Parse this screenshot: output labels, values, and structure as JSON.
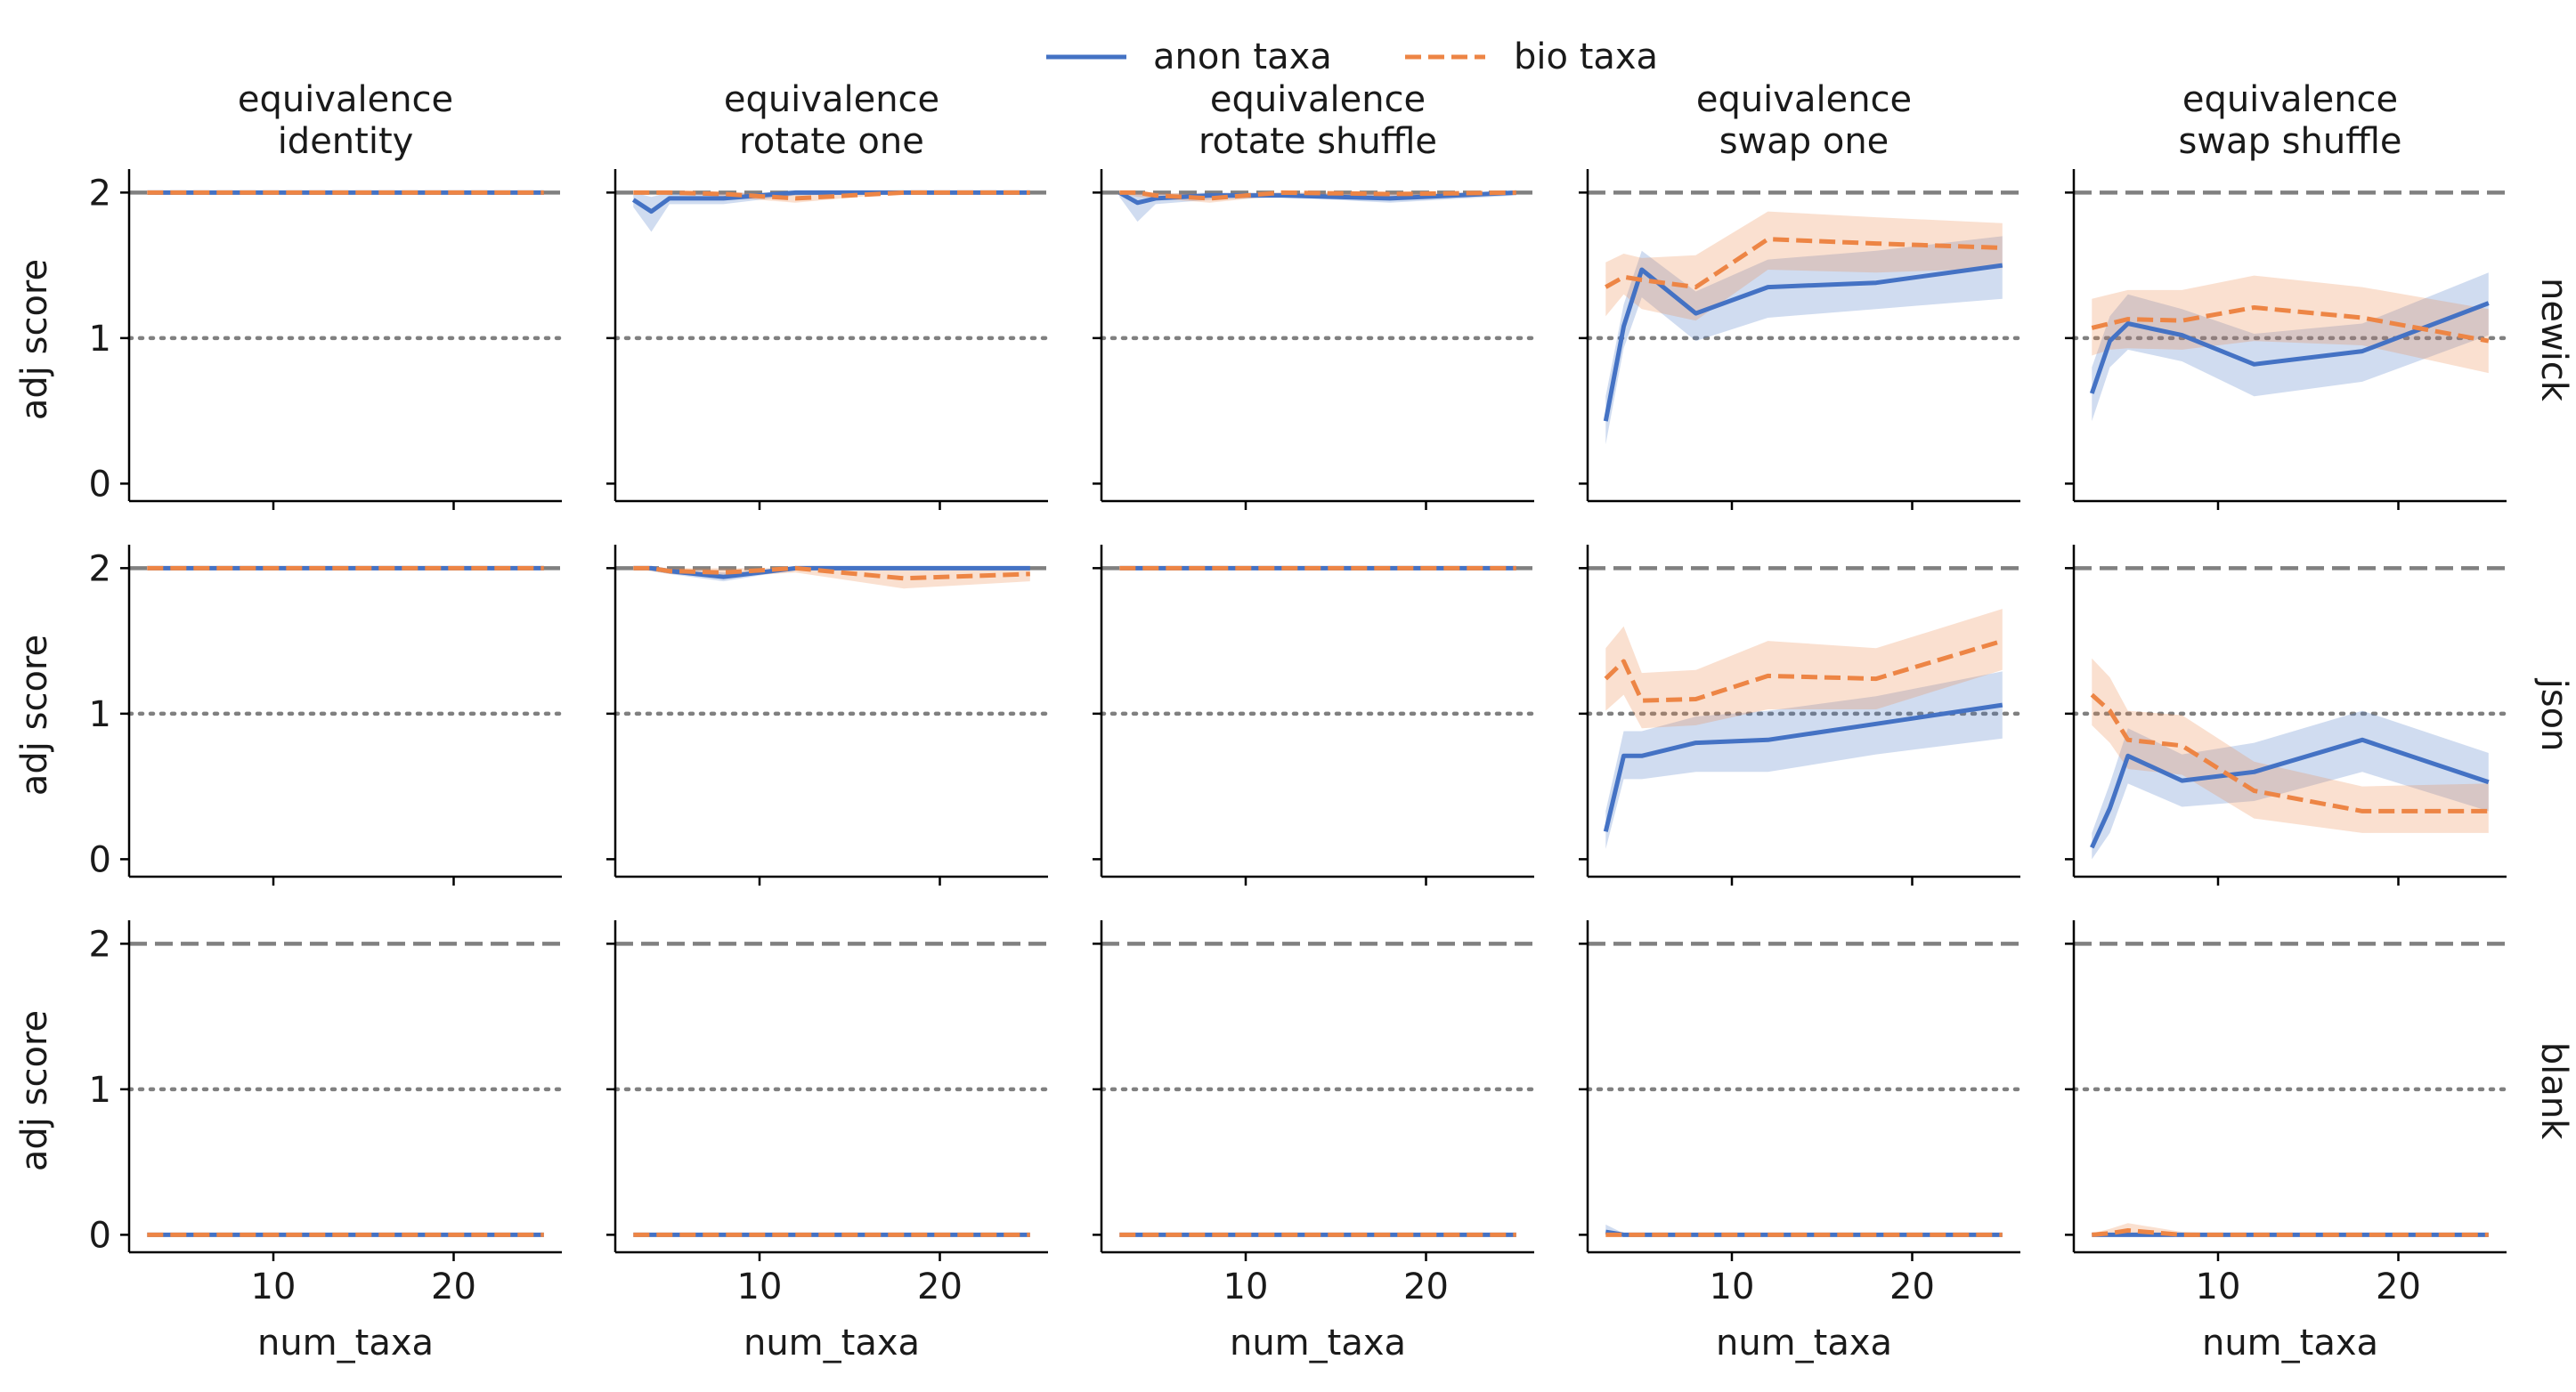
{
  "figure": {
    "legend_placement": "top-center",
    "legend": [
      {
        "label": "anon taxa",
        "color": "#4472c4",
        "dash": "solid"
      },
      {
        "label": "bio taxa",
        "color": "#ed8545",
        "dash": "dashed"
      }
    ],
    "column_titles": [
      [
        "equivalence",
        "identity"
      ],
      [
        "equivalence",
        "rotate one"
      ],
      [
        "equivalence",
        "rotate shuffle"
      ],
      [
        "equivalence",
        "swap one"
      ],
      [
        "equivalence",
        "swap shuffle"
      ]
    ],
    "row_labels": [
      "newick",
      "json",
      "blank"
    ],
    "xlabel": "num_taxa",
    "ylabel": "adj score",
    "xlim": [
      2,
      26
    ],
    "ylim": [
      -0.12,
      2.1
    ],
    "xticks": [
      10,
      20
    ],
    "yticks": [
      0,
      1,
      2
    ],
    "reference_lines": [
      {
        "y": 2,
        "style": "dashed",
        "color": "#808080"
      },
      {
        "y": 1,
        "style": "dotted",
        "color": "#808080"
      }
    ]
  },
  "chart_data": {
    "type": "line",
    "grid": false,
    "series_names": [
      "anon taxa",
      "bio taxa"
    ],
    "panels": [
      {
        "row": "newick",
        "column": "identity",
        "anon": {
          "x": [
            3,
            25
          ],
          "y": [
            2.0,
            2.0
          ]
        },
        "bio": {
          "x": [
            3,
            25
          ],
          "y": [
            2.0,
            2.0
          ]
        }
      },
      {
        "row": "newick",
        "column": "rotate one",
        "anon": {
          "x": [
            3,
            4,
            5,
            8,
            12,
            18,
            25
          ],
          "y": [
            1.95,
            1.87,
            1.96,
            1.96,
            2.0,
            2.0,
            2.0
          ],
          "lo": [
            1.9,
            1.73,
            1.92,
            1.92,
            1.98,
            2.0,
            2.0
          ],
          "hi": [
            2.0,
            1.97,
            2.0,
            2.0,
            2.0,
            2.0,
            2.0
          ]
        },
        "bio": {
          "x": [
            3,
            4,
            5,
            8,
            12,
            18,
            25
          ],
          "y": [
            2.0,
            2.0,
            2.0,
            1.99,
            1.96,
            2.0,
            2.0
          ],
          "lo": [
            2.0,
            2.0,
            2.0,
            1.97,
            1.93,
            2.0,
            2.0
          ],
          "hi": [
            2.0,
            2.0,
            2.0,
            2.0,
            1.99,
            2.0,
            2.0
          ]
        }
      },
      {
        "row": "newick",
        "column": "rotate shuffle",
        "anon": {
          "x": [
            3,
            4,
            5,
            8,
            12,
            18,
            25
          ],
          "y": [
            2.0,
            1.93,
            1.96,
            1.98,
            1.98,
            1.96,
            2.0
          ],
          "lo": [
            1.97,
            1.8,
            1.92,
            1.95,
            1.97,
            1.93,
            1.98
          ],
          "hi": [
            2.0,
            2.0,
            1.99,
            2.0,
            2.0,
            1.99,
            2.0
          ]
        },
        "bio": {
          "x": [
            3,
            4,
            5,
            8,
            12,
            18,
            25
          ],
          "y": [
            2.0,
            2.0,
            1.98,
            1.96,
            2.0,
            1.99,
            2.0
          ],
          "lo": [
            2.0,
            1.97,
            1.96,
            1.93,
            1.98,
            1.97,
            2.0
          ],
          "hi": [
            2.0,
            2.0,
            2.0,
            1.99,
            2.0,
            2.0,
            2.0
          ]
        }
      },
      {
        "row": "newick",
        "column": "swap one",
        "anon": {
          "x": [
            3,
            4,
            5,
            8,
            12,
            18,
            25
          ],
          "y": [
            0.43,
            1.08,
            1.47,
            1.17,
            1.35,
            1.38,
            1.5
          ],
          "lo": [
            0.27,
            0.93,
            1.28,
            0.98,
            1.14,
            1.2,
            1.27
          ],
          "hi": [
            0.6,
            1.23,
            1.6,
            1.32,
            1.54,
            1.6,
            1.7
          ]
        },
        "bio": {
          "x": [
            3,
            4,
            5,
            8,
            12,
            18,
            25
          ],
          "y": [
            1.35,
            1.42,
            1.4,
            1.35,
            1.68,
            1.65,
            1.62
          ],
          "lo": [
            1.15,
            1.3,
            1.2,
            1.12,
            1.47,
            1.45,
            1.48
          ],
          "hi": [
            1.52,
            1.58,
            1.55,
            1.57,
            1.87,
            1.83,
            1.79
          ]
        }
      },
      {
        "row": "newick",
        "column": "swap shuffle",
        "anon": {
          "x": [
            3,
            4,
            5,
            8,
            12,
            18,
            25
          ],
          "y": [
            0.62,
            0.98,
            1.1,
            1.02,
            0.82,
            0.91,
            1.24
          ],
          "lo": [
            0.43,
            0.8,
            0.92,
            0.84,
            0.6,
            0.7,
            1.02
          ],
          "hi": [
            0.8,
            1.15,
            1.3,
            1.2,
            1.03,
            1.1,
            1.45
          ]
        },
        "bio": {
          "x": [
            3,
            4,
            5,
            8,
            12,
            18,
            25
          ],
          "y": [
            1.07,
            1.1,
            1.13,
            1.12,
            1.21,
            1.14,
            0.98
          ],
          "lo": [
            0.88,
            0.92,
            0.93,
            0.92,
            0.98,
            0.95,
            0.76
          ],
          "hi": [
            1.27,
            1.3,
            1.33,
            1.33,
            1.43,
            1.35,
            1.2
          ]
        }
      },
      {
        "row": "json",
        "column": "identity",
        "anon": {
          "x": [
            3,
            25
          ],
          "y": [
            2.0,
            2.0
          ]
        },
        "bio": {
          "x": [
            3,
            25
          ],
          "y": [
            2.0,
            2.0
          ]
        }
      },
      {
        "row": "json",
        "column": "rotate one",
        "anon": {
          "x": [
            3,
            4,
            5,
            8,
            12,
            18,
            25
          ],
          "y": [
            2.0,
            2.0,
            1.98,
            1.94,
            2.0,
            2.0,
            2.0
          ],
          "lo": [
            2.0,
            1.98,
            1.96,
            1.91,
            1.99,
            1.99,
            1.99
          ],
          "hi": [
            2.0,
            2.0,
            2.0,
            1.97,
            2.0,
            2.0,
            2.0
          ]
        },
        "bio": {
          "x": [
            3,
            4,
            5,
            8,
            12,
            18,
            25
          ],
          "y": [
            2.0,
            2.0,
            1.98,
            1.97,
            2.0,
            1.93,
            1.96
          ],
          "lo": [
            2.0,
            1.98,
            1.96,
            1.94,
            1.97,
            1.86,
            1.91
          ],
          "hi": [
            2.0,
            2.0,
            2.0,
            2.0,
            2.0,
            1.99,
            2.0
          ]
        }
      },
      {
        "row": "json",
        "column": "rotate shuffle",
        "anon": {
          "x": [
            3,
            25
          ],
          "y": [
            2.0,
            2.0
          ]
        },
        "bio": {
          "x": [
            3,
            25
          ],
          "y": [
            2.0,
            2.0
          ]
        }
      },
      {
        "row": "json",
        "column": "swap one",
        "anon": {
          "x": [
            3,
            4,
            5,
            8,
            12,
            18,
            25
          ],
          "y": [
            0.19,
            0.71,
            0.71,
            0.8,
            0.82,
            0.93,
            1.06
          ],
          "lo": [
            0.07,
            0.55,
            0.55,
            0.6,
            0.6,
            0.72,
            0.83
          ],
          "hi": [
            0.33,
            0.88,
            0.88,
            0.98,
            1.02,
            1.12,
            1.29
          ]
        },
        "bio": {
          "x": [
            3,
            4,
            5,
            8,
            12,
            18,
            25
          ],
          "y": [
            1.24,
            1.36,
            1.09,
            1.1,
            1.26,
            1.24,
            1.5
          ],
          "lo": [
            1.02,
            1.13,
            0.9,
            0.92,
            1.03,
            1.03,
            1.3
          ],
          "hi": [
            1.45,
            1.6,
            1.28,
            1.3,
            1.5,
            1.45,
            1.72
          ]
        }
      },
      {
        "row": "json",
        "column": "swap shuffle",
        "anon": {
          "x": [
            3,
            4,
            5,
            8,
            12,
            18,
            25
          ],
          "y": [
            0.08,
            0.35,
            0.71,
            0.54,
            0.6,
            0.82,
            0.53
          ],
          "lo": [
            0.0,
            0.18,
            0.52,
            0.36,
            0.4,
            0.6,
            0.33
          ],
          "hi": [
            0.18,
            0.52,
            0.9,
            0.72,
            0.8,
            1.02,
            0.73
          ]
        },
        "bio": {
          "x": [
            3,
            4,
            5,
            8,
            12,
            18,
            25
          ],
          "y": [
            1.13,
            1.02,
            0.82,
            0.78,
            0.47,
            0.33,
            0.33
          ],
          "lo": [
            0.92,
            0.8,
            0.62,
            0.58,
            0.28,
            0.18,
            0.18
          ],
          "hi": [
            1.38,
            1.25,
            1.02,
            0.99,
            0.67,
            0.5,
            0.52
          ]
        }
      },
      {
        "row": "blank",
        "column": "identity",
        "anon": {
          "x": [
            3,
            25
          ],
          "y": [
            0.0,
            0.0
          ]
        },
        "bio": {
          "x": [
            3,
            25
          ],
          "y": [
            0.0,
            0.0
          ]
        }
      },
      {
        "row": "blank",
        "column": "rotate one",
        "anon": {
          "x": [
            3,
            25
          ],
          "y": [
            0.0,
            0.0
          ]
        },
        "bio": {
          "x": [
            3,
            25
          ],
          "y": [
            0.0,
            0.0
          ]
        }
      },
      {
        "row": "blank",
        "column": "rotate shuffle",
        "anon": {
          "x": [
            3,
            25
          ],
          "y": [
            0.0,
            0.0
          ]
        },
        "bio": {
          "x": [
            3,
            25
          ],
          "y": [
            0.0,
            0.0
          ]
        }
      },
      {
        "row": "blank",
        "column": "swap one",
        "anon": {
          "x": [
            3,
            4,
            5,
            8,
            12,
            18,
            25
          ],
          "y": [
            0.02,
            0.0,
            0.0,
            0.0,
            0.0,
            0.0,
            0.0
          ],
          "lo": [
            0.0,
            0.0,
            0.0,
            0.0,
            0.0,
            0.0,
            0.0
          ],
          "hi": [
            0.07,
            0.01,
            0.0,
            0.0,
            0.0,
            0.0,
            0.0
          ]
        },
        "bio": {
          "x": [
            3,
            25
          ],
          "y": [
            0.0,
            0.0
          ]
        }
      },
      {
        "row": "blank",
        "column": "swap shuffle",
        "anon": {
          "x": [
            3,
            25
          ],
          "y": [
            0.0,
            0.0
          ]
        },
        "bio": {
          "x": [
            3,
            4,
            5,
            8,
            12,
            18,
            25
          ],
          "y": [
            0.0,
            0.01,
            0.03,
            0.0,
            0.0,
            0.0,
            0.0
          ],
          "lo": [
            0.0,
            0.0,
            0.0,
            0.0,
            0.0,
            0.0,
            0.0
          ],
          "hi": [
            0.01,
            0.04,
            0.08,
            0.02,
            0.0,
            0.0,
            0.0
          ]
        }
      }
    ]
  }
}
